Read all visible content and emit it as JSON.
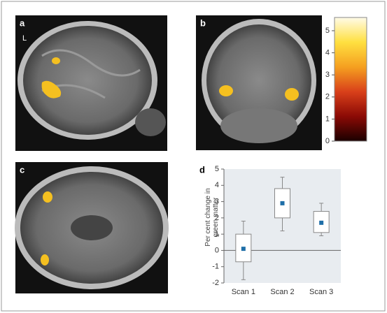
{
  "panels": {
    "labels": [
      "a",
      "b",
      "c",
      "d"
    ],
    "side_label": "L"
  },
  "chart_data": [
    {
      "type": "colorbar",
      "ylim": [
        0,
        5.6
      ],
      "yticks": [
        0,
        1,
        2,
        3,
        4,
        5
      ],
      "colors": [
        "#1a0000",
        "#8b0a05",
        "#d9401a",
        "#f5a020",
        "#ffe040",
        "#fffbe8"
      ]
    },
    {
      "type": "box",
      "ylabel": "Per cent change in green matter",
      "categories": [
        "Scan 1",
        "Scan 2",
        "Scan 3"
      ],
      "whisker_low": [
        -1.8,
        1.2,
        0.9
      ],
      "q1": [
        -0.7,
        2.0,
        1.1
      ],
      "q3": [
        1.0,
        3.8,
        2.4
      ],
      "whisker_high": [
        1.8,
        4.5,
        2.9
      ],
      "mean": [
        0.1,
        2.9,
        1.7
      ],
      "color": "#1f6fa8",
      "box_color": "#888888",
      "background": "#e8ecf0",
      "ylim": [
        -2,
        5
      ],
      "yticks": [
        -2,
        -1,
        0,
        1,
        2,
        3,
        4,
        5
      ]
    }
  ]
}
